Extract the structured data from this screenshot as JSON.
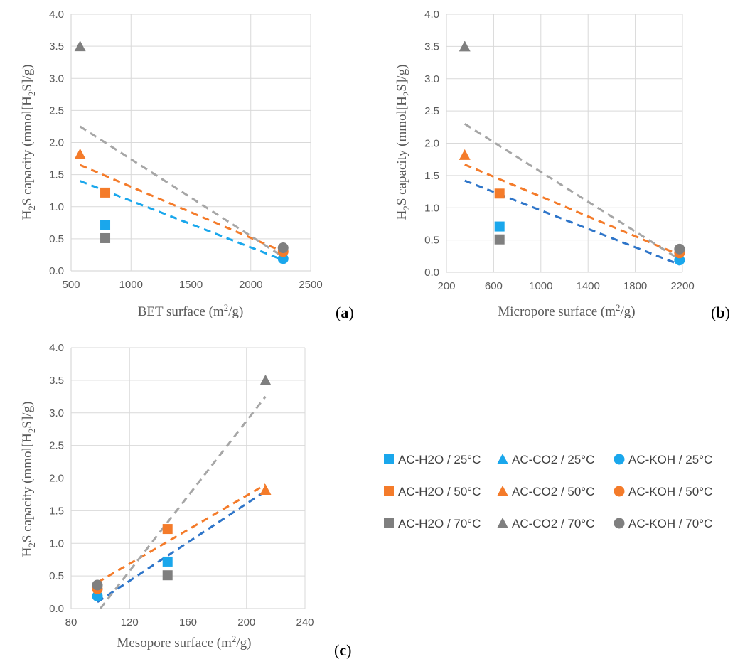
{
  "colors": {
    "blue": "#1aa7ec",
    "darkblue": "#2e75c9",
    "orange": "#f47b2a",
    "gray": "#7f7f7f",
    "lightgray": "#a6a6a6",
    "grid": "#d9d9d9",
    "text": "#595959"
  },
  "legend": [
    {
      "label": "AC-H2O / 25°C",
      "marker": "square",
      "color": "blue"
    },
    {
      "label": "AC-CO2 / 25°C",
      "marker": "triangle",
      "color": "blue"
    },
    {
      "label": "AC-KOH / 25°C",
      "marker": "circle",
      "color": "blue"
    },
    {
      "label": "AC-H2O / 50°C",
      "marker": "square",
      "color": "orange"
    },
    {
      "label": "AC-CO2 / 50°C",
      "marker": "triangle",
      "color": "orange"
    },
    {
      "label": "AC-KOH / 50°C",
      "marker": "circle",
      "color": "orange"
    },
    {
      "label": "AC-H2O / 70°C",
      "marker": "square",
      "color": "gray"
    },
    {
      "label": "AC-CO2 / 70°C",
      "marker": "triangle",
      "color": "gray"
    },
    {
      "label": "AC-KOH / 70°C",
      "marker": "circle",
      "color": "gray"
    }
  ],
  "chart_data": [
    {
      "type": "scatter",
      "panel": "a",
      "ylabel": "H2S capacity (mmol[H2S]/g)",
      "xlabel": "BET surface (m2/g)",
      "xlim": [
        500,
        2500
      ],
      "xticks": [
        500,
        1000,
        1500,
        2000,
        2500
      ],
      "xtick_labels": [
        "500",
        "1000",
        "1500",
        "2000",
        "2500"
      ],
      "ylim": [
        0,
        4
      ],
      "yticks": [
        0,
        0.5,
        1,
        1.5,
        2,
        2.5,
        3,
        3.5,
        4
      ],
      "ytick_labels": [
        "0.0",
        "0.5",
        "1.0",
        "1.5",
        "2.0",
        "2.5",
        "3.0",
        "3.5",
        "4.0"
      ],
      "points": [
        {
          "series": "AC-H2O / 25°C",
          "marker": "square",
          "color": "blue",
          "x": 785,
          "y": 0.72
        },
        {
          "series": "AC-H2O / 50°C",
          "marker": "square",
          "color": "orange",
          "x": 785,
          "y": 1.22
        },
        {
          "series": "AC-H2O / 70°C",
          "marker": "square",
          "color": "gray",
          "x": 785,
          "y": 0.51
        },
        {
          "series": "AC-CO2 / 50°C",
          "marker": "triangle",
          "color": "orange",
          "x": 575,
          "y": 1.82
        },
        {
          "series": "AC-CO2 / 70°C",
          "marker": "triangle",
          "color": "gray",
          "x": 575,
          "y": 3.5
        },
        {
          "series": "AC-KOH / 25°C",
          "marker": "circle",
          "color": "blue",
          "x": 2270,
          "y": 0.19
        },
        {
          "series": "AC-KOH / 50°C",
          "marker": "circle",
          "color": "orange",
          "x": 2270,
          "y": 0.3
        },
        {
          "series": "AC-KOH / 70°C",
          "marker": "circle",
          "color": "gray",
          "x": 2270,
          "y": 0.36
        }
      ],
      "trendlines": [
        {
          "name": "25°C trend",
          "color": "blue",
          "x": [
            575,
            2270
          ],
          "y": [
            1.4,
            0.17
          ]
        },
        {
          "name": "50°C trend",
          "color": "orange",
          "x": [
            575,
            2270
          ],
          "y": [
            1.65,
            0.3
          ]
        },
        {
          "name": "70°C trend",
          "color": "lightgray",
          "x": [
            575,
            2270
          ],
          "y": [
            2.25,
            0.22
          ]
        }
      ]
    },
    {
      "type": "scatter",
      "panel": "b",
      "ylabel": "H2S capacity (mmol[H2S]/g)",
      "xlabel": "Micropore surface (m2/g)",
      "xlim": [
        200,
        2200
      ],
      "xticks": [
        200,
        600,
        1000,
        1400,
        1800,
        2200
      ],
      "xtick_labels": [
        "200",
        "600",
        "1000",
        "1400",
        "1800",
        "2200"
      ],
      "ylim": [
        0,
        4
      ],
      "yticks": [
        0,
        0.5,
        1,
        1.5,
        2,
        2.5,
        3,
        3.5,
        4
      ],
      "ytick_labels": [
        "0.0",
        "0.5",
        "1.0",
        "1.5",
        "2.0",
        "2.5",
        "3.0",
        "3.5",
        "4.0"
      ],
      "points": [
        {
          "series": "AC-H2O / 25°C",
          "marker": "square",
          "color": "blue",
          "x": 650,
          "y": 0.71
        },
        {
          "series": "AC-H2O / 50°C",
          "marker": "square",
          "color": "orange",
          "x": 650,
          "y": 1.22
        },
        {
          "series": "AC-H2O / 70°C",
          "marker": "square",
          "color": "gray",
          "x": 650,
          "y": 0.51
        },
        {
          "series": "AC-CO2 / 50°C",
          "marker": "triangle",
          "color": "orange",
          "x": 355,
          "y": 1.82
        },
        {
          "series": "AC-CO2 / 70°C",
          "marker": "triangle",
          "color": "gray",
          "x": 355,
          "y": 3.5
        },
        {
          "series": "AC-KOH / 25°C",
          "marker": "circle",
          "color": "blue",
          "x": 2175,
          "y": 0.19
        },
        {
          "series": "AC-KOH / 50°C",
          "marker": "circle",
          "color": "orange",
          "x": 2175,
          "y": 0.3
        },
        {
          "series": "AC-KOH / 70°C",
          "marker": "circle",
          "color": "gray",
          "x": 2175,
          "y": 0.36
        }
      ],
      "trendlines": [
        {
          "name": "25°C trend",
          "color": "darkblue",
          "x": [
            355,
            2175
          ],
          "y": [
            1.42,
            0.12
          ]
        },
        {
          "name": "50°C trend",
          "color": "orange",
          "x": [
            355,
            2175
          ],
          "y": [
            1.67,
            0.27
          ]
        },
        {
          "name": "70°C trend",
          "color": "lightgray",
          "x": [
            355,
            2175
          ],
          "y": [
            2.3,
            0.2
          ]
        }
      ]
    },
    {
      "type": "scatter",
      "panel": "c",
      "ylabel": "H2S capacity (mmol[H2S]/g)",
      "xlabel": "Mesopore surface (m2/g)",
      "xlim": [
        80,
        240
      ],
      "xticks": [
        80,
        120,
        160,
        200,
        240
      ],
      "xtick_labels": [
        "80",
        "120",
        "160",
        "200",
        "240"
      ],
      "ylim": [
        0,
        4
      ],
      "yticks": [
        0,
        0.5,
        1,
        1.5,
        2,
        2.5,
        3,
        3.5,
        4
      ],
      "ytick_labels": [
        "0.0",
        "0.5",
        "1.0",
        "1.5",
        "2.0",
        "2.5",
        "3.0",
        "3.5",
        "4.0"
      ],
      "points": [
        {
          "series": "AC-H2O / 25°C",
          "marker": "square",
          "color": "blue",
          "x": 146,
          "y": 0.72
        },
        {
          "series": "AC-H2O / 50°C",
          "marker": "square",
          "color": "orange",
          "x": 146,
          "y": 1.22
        },
        {
          "series": "AC-H2O / 70°C",
          "marker": "square",
          "color": "gray",
          "x": 146,
          "y": 0.51
        },
        {
          "series": "AC-CO2 / 50°C",
          "marker": "triangle",
          "color": "orange",
          "x": 213,
          "y": 1.82
        },
        {
          "series": "AC-CO2 / 70°C",
          "marker": "triangle",
          "color": "gray",
          "x": 213,
          "y": 3.5
        },
        {
          "series": "AC-KOH / 25°C",
          "marker": "circle",
          "color": "blue",
          "x": 98,
          "y": 0.19
        },
        {
          "series": "AC-KOH / 50°C",
          "marker": "circle",
          "color": "orange",
          "x": 98,
          "y": 0.3
        },
        {
          "series": "AC-KOH / 70°C",
          "marker": "circle",
          "color": "gray",
          "x": 98,
          "y": 0.36
        }
      ],
      "trendlines": [
        {
          "name": "25°C trend",
          "color": "darkblue",
          "x": [
            98,
            213
          ],
          "y": [
            0.1,
            1.8
          ]
        },
        {
          "name": "50°C trend",
          "color": "orange",
          "x": [
            98,
            213
          ],
          "y": [
            0.4,
            1.9
          ]
        },
        {
          "name": "70°C trend",
          "color": "lightgray",
          "x": [
            100,
            213
          ],
          "y": [
            0.0,
            3.25
          ]
        }
      ]
    }
  ]
}
